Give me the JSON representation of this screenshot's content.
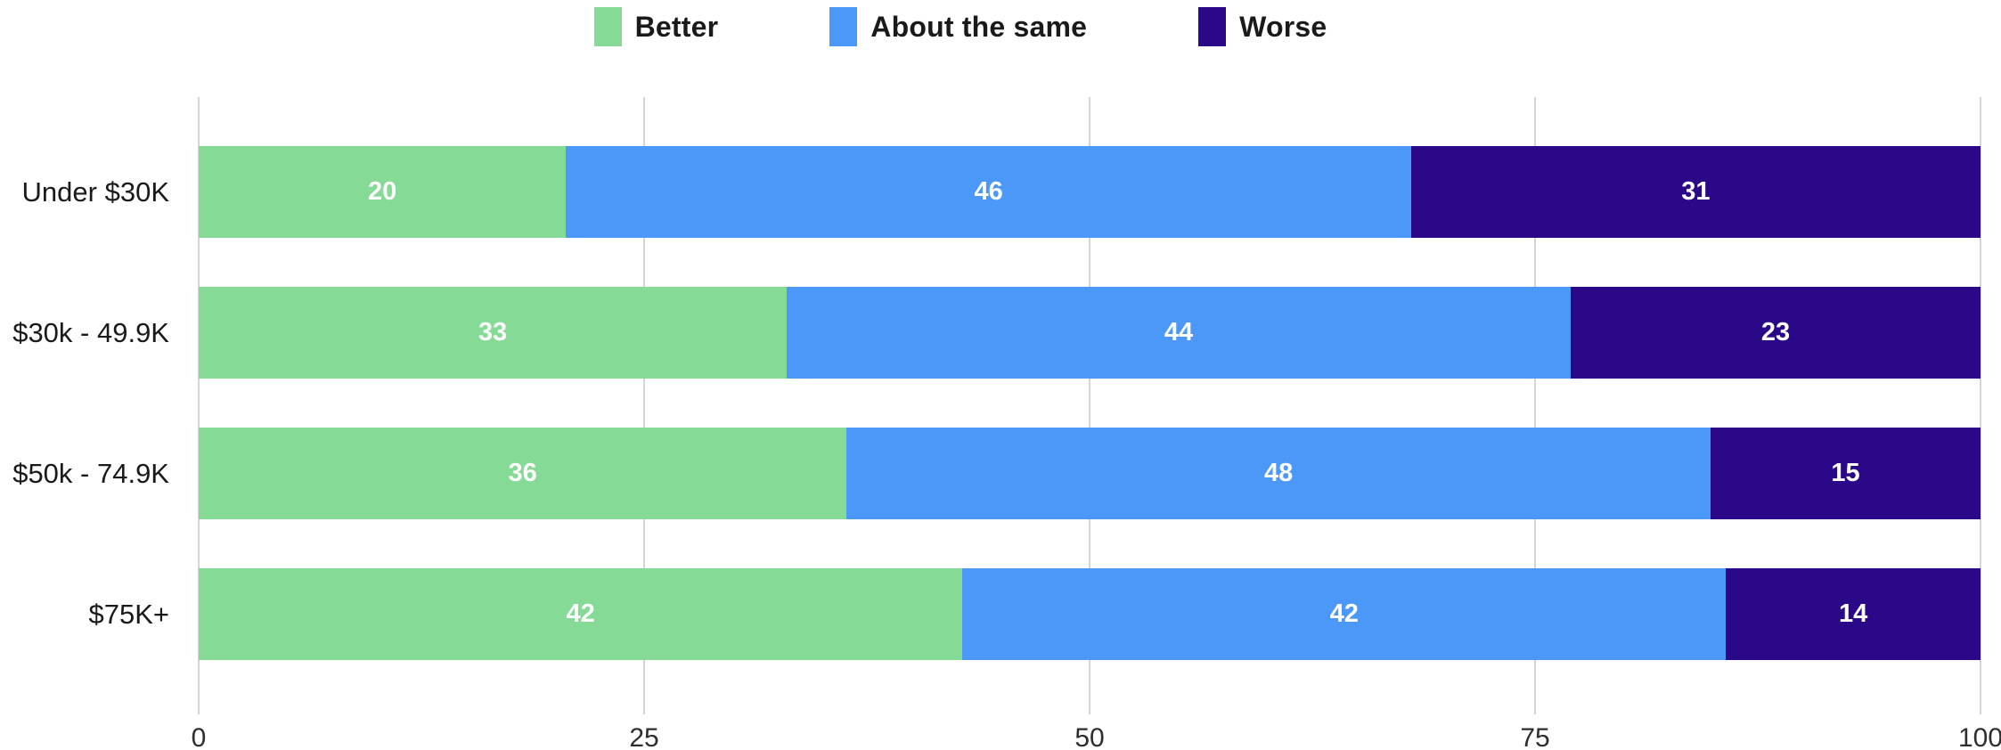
{
  "chart_data": {
    "type": "bar",
    "orientation": "horizontal",
    "stacked": true,
    "normalized_to_100_percent": true,
    "title": "",
    "xlabel": "",
    "ylabel": "",
    "categories": [
      "Under $30K",
      "$30k - 49.9K",
      "$50k - 74.9K",
      "$75K+"
    ],
    "series": [
      {
        "name": "Better",
        "color": "#85DA96",
        "values": [
          20,
          33,
          36,
          42
        ]
      },
      {
        "name": "About the same",
        "color": "#4C98F8",
        "values": [
          46,
          44,
          48,
          42
        ]
      },
      {
        "name": "Worse",
        "color": "#2B0887",
        "values": [
          31,
          23,
          15,
          14
        ]
      }
    ],
    "x_ticks": [
      0,
      25,
      50,
      75,
      100
    ],
    "xlim": [
      0,
      100
    ],
    "legend_position": "top",
    "grid": "vertical-only",
    "value_labels": "inside segments, white bold, centered"
  },
  "colors": {
    "background": "#FFFFFF",
    "gridline": "#D5D5D5",
    "category_text": "#1A1A1A",
    "legend_text": "#1A1A1A",
    "tick_text": "#2E2E2E",
    "value_label_text": "#FFFFFF"
  }
}
